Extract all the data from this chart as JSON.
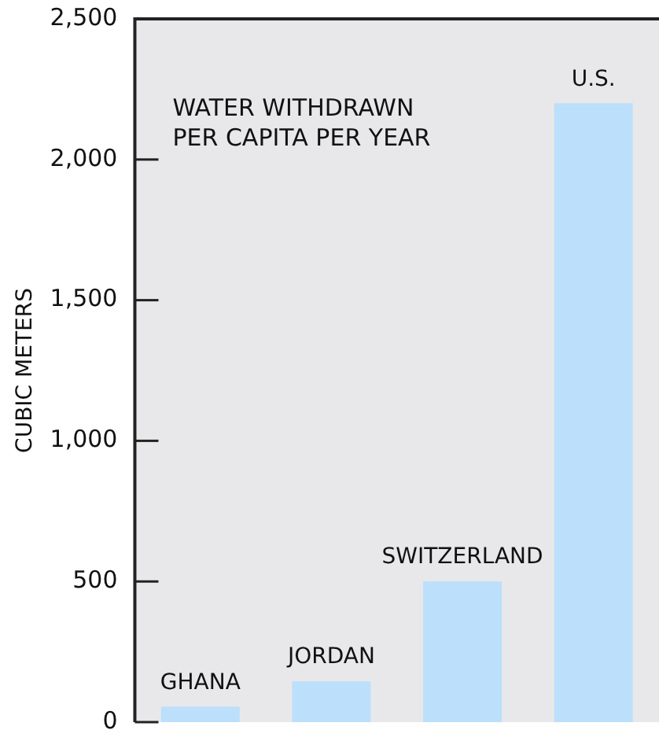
{
  "chart_data": {
    "type": "bar",
    "title": "WATER WITHDRAWN PER CAPITA PER YEAR",
    "ylabel": "CUBIC METERS",
    "categories": [
      "GHANA",
      "JORDAN",
      "SWITZERLAND",
      "U.S."
    ],
    "values": [
      55,
      145,
      500,
      2200
    ],
    "color": "#bcdffb",
    "ylim": [
      0,
      2500
    ],
    "yticks": [
      {
        "value": 0,
        "label": "0"
      },
      {
        "value": 500,
        "label": "500"
      },
      {
        "value": 1000,
        "label": "1,000"
      },
      {
        "value": 1500,
        "label": "1,500"
      },
      {
        "value": 2000,
        "label": "2,000"
      },
      {
        "value": 2500,
        "label": "2,500"
      }
    ]
  }
}
